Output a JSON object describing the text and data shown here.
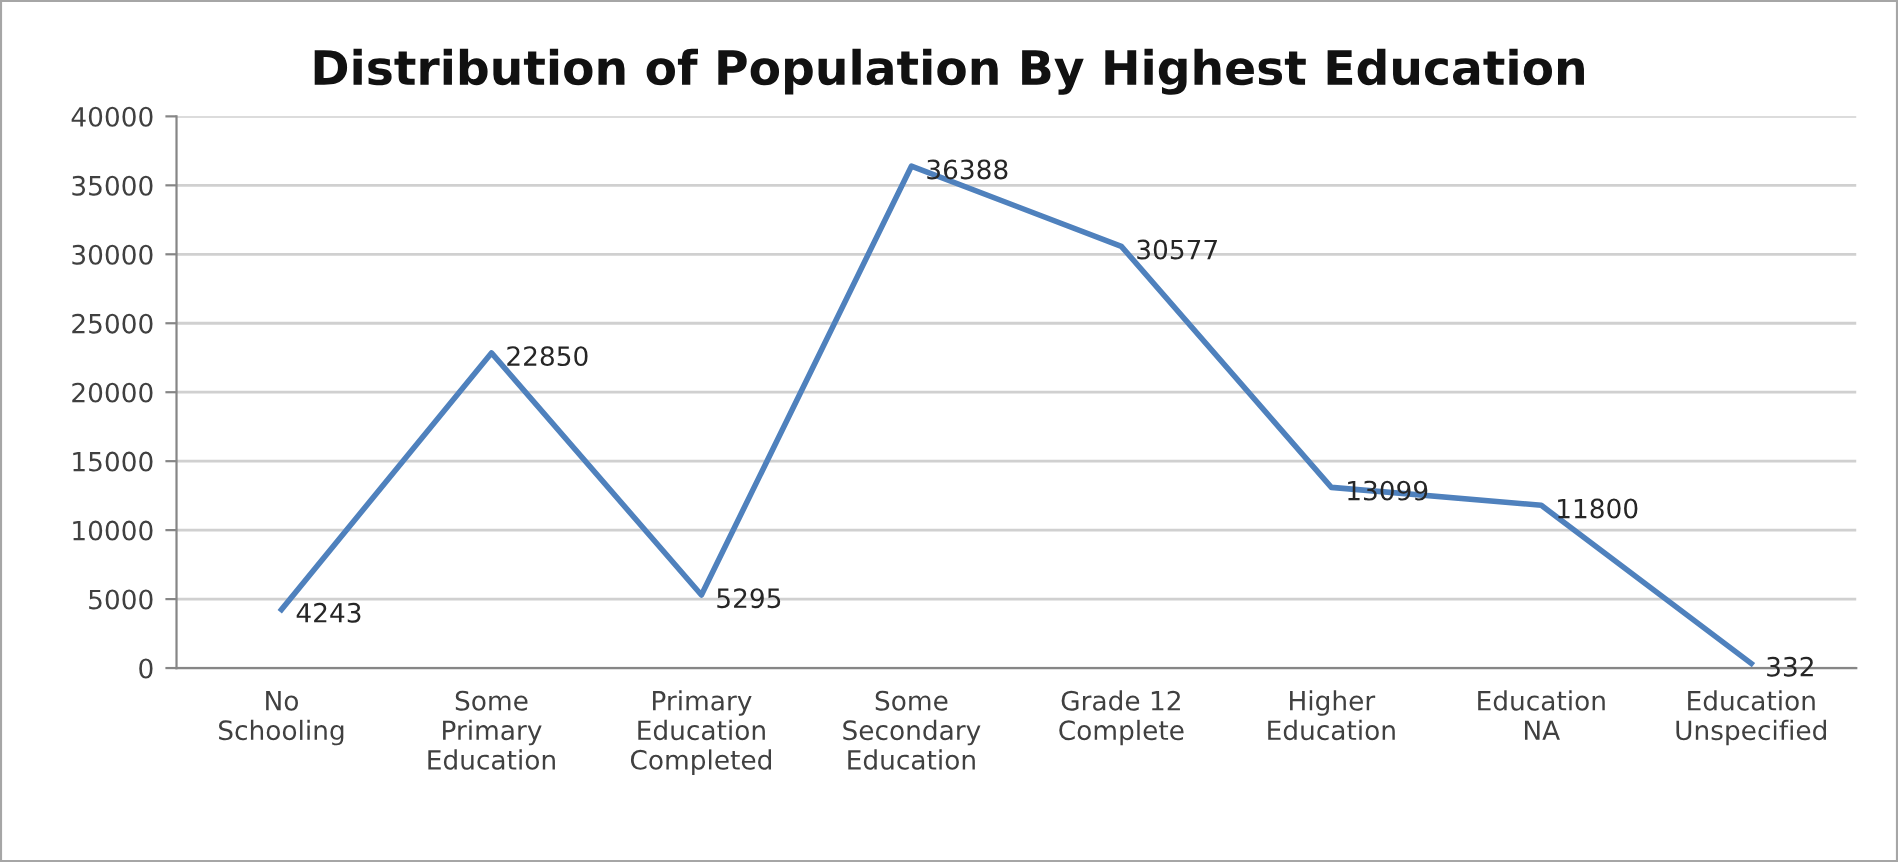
{
  "chart_data": {
    "type": "line",
    "title": "Distribution of Population By Highest Education",
    "categories": [
      "No Schooling",
      "Some Primary Education",
      "Primary Education Completed",
      "Some Secondary Education",
      "Grade 12 Complete",
      "Higher Education",
      "Education NA",
      "Education Unspecified"
    ],
    "series": [
      {
        "color": "#4f81bd",
        "values": [
          4243,
          22850,
          5295,
          36388,
          30577,
          13099,
          11800,
          332
        ]
      }
    ],
    "ylim": [
      0,
      40000
    ],
    "yticks": [
      0,
      5000,
      10000,
      15000,
      20000,
      25000,
      30000,
      35000,
      40000
    ],
    "grid": "y",
    "data_labels": true,
    "marker": "none",
    "line_style": "solid"
  }
}
